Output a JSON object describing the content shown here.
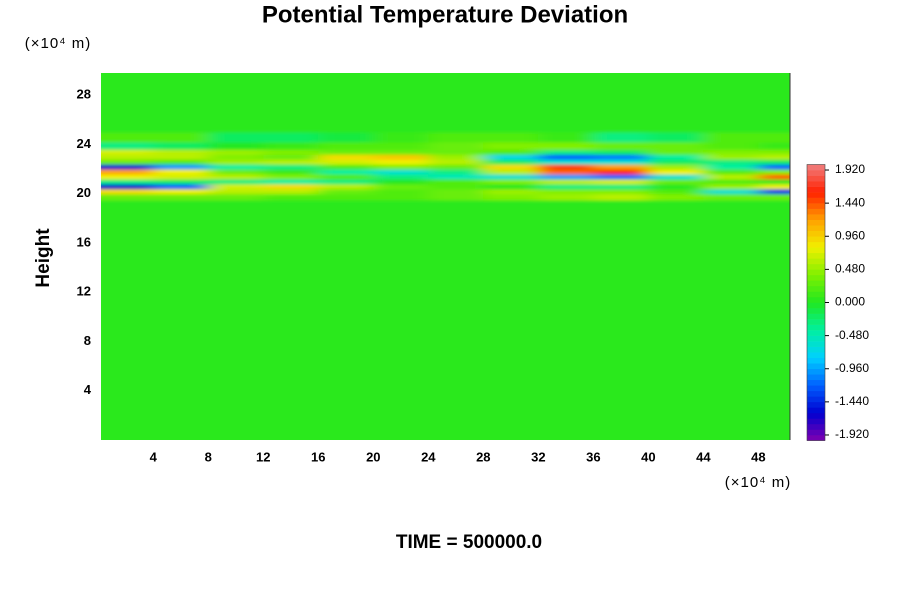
{
  "chart_data": {
    "type": "heatmap",
    "title": "Potential Temperature Deviation",
    "ylabel": "Height",
    "x_unit": "(×10⁴ m)",
    "y_unit": "(×10⁴ m)",
    "annotation": "TIME = 500000.0",
    "xlim": [
      0.2,
      50.3
    ],
    "ylim": [
      0,
      29.8
    ],
    "xticks": [
      4,
      8,
      12,
      16,
      20,
      24,
      28,
      32,
      36,
      40,
      44,
      48
    ],
    "yticks": [
      4,
      8,
      12,
      16,
      20,
      24,
      28
    ],
    "x_edges": [
      0.2,
      4,
      8,
      12,
      16,
      20,
      24,
      28,
      32,
      36,
      40,
      44,
      48,
      50.3
    ],
    "y_edges": [
      0,
      19.5,
      20.0,
      20.4,
      20.8,
      21.2,
      21.6,
      22.0,
      22.4,
      22.8,
      23.2,
      23.6,
      24.2,
      25,
      29.8
    ],
    "z": [
      [
        0.05,
        0.05,
        0.05,
        0.05,
        0.05,
        0.05,
        0.05,
        0.05,
        0.05,
        0.05,
        0.05,
        0.05,
        0.05
      ],
      [
        0.3,
        0.3,
        0.3,
        0.2,
        0.2,
        0.2,
        0.3,
        0.4,
        0.5,
        0.6,
        0.4,
        0.3,
        0.3
      ],
      [
        0.9,
        0.8,
        0.6,
        0.6,
        0.3,
        0.2,
        0.3,
        0.5,
        0.4,
        0.4,
        0.2,
        -0.6,
        -1.4
      ],
      [
        -1.6,
        -1.2,
        0.7,
        0.9,
        0.6,
        0.3,
        0.2,
        0.0,
        -0.3,
        -0.3,
        0.0,
        0.5,
        0.8
      ],
      [
        -0.3,
        -0.2,
        -0.3,
        -0.4,
        -0.3,
        0.0,
        0.2,
        0.4,
        0.6,
        0.7,
        0.3,
        0.2,
        0.0
      ],
      [
        0.8,
        0.7,
        0.6,
        0.4,
        0.2,
        -0.3,
        -0.5,
        -0.6,
        -1.0,
        -1.2,
        -0.6,
        0.6,
        1.4
      ],
      [
        1.2,
        0.8,
        0.3,
        0.1,
        -0.4,
        -0.6,
        -0.3,
        0.6,
        1.4,
        1.6,
        0.8,
        0.2,
        0.4
      ],
      [
        -1.6,
        -1.0,
        -0.4,
        -0.3,
        0.2,
        0.4,
        0.3,
        0.9,
        1.5,
        1.2,
        0.5,
        -0.4,
        -1.2
      ],
      [
        0.3,
        0.2,
        0.5,
        0.6,
        0.7,
        0.8,
        0.6,
        -0.2,
        -0.6,
        -0.6,
        -0.2,
        -0.3,
        -0.2
      ],
      [
        0.6,
        0.6,
        0.4,
        0.3,
        0.9,
        1.0,
        0.5,
        -0.7,
        -1.2,
        -1.1,
        -0.4,
        0.5,
        0.6
      ],
      [
        0.7,
        0.6,
        0.5,
        0.4,
        0.3,
        0.3,
        0.3,
        0.2,
        -0.3,
        -0.2,
        0.3,
        0.4,
        0.4
      ],
      [
        -0.3,
        -0.2,
        0.0,
        0.1,
        0.2,
        0.2,
        0.3,
        0.4,
        0.4,
        0.3,
        0.3,
        0.2,
        0.1
      ],
      [
        0.2,
        0.2,
        -0.2,
        -0.2,
        -0.1,
        0.1,
        0.2,
        0.2,
        0.1,
        -0.3,
        -0.2,
        0.2,
        0.2
      ],
      [
        0.05,
        0.05,
        0.05,
        0.05,
        0.05,
        0.05,
        0.05,
        0.05,
        0.05,
        0.05,
        0.05,
        0.05,
        0.05
      ]
    ],
    "clim": [
      -2,
      2
    ],
    "colorscale": [
      "#8000b0",
      "#0000d0",
      "#0060ff",
      "#00d0ff",
      "#00f0a0",
      "#20e820",
      "#80f000",
      "#f0f000",
      "#ffa000",
      "#ff2000",
      "#f08080"
    ],
    "cticks": [
      {
        "value": 1.92,
        "label": "1.920"
      },
      {
        "value": 1.44,
        "label": "1.440"
      },
      {
        "value": 0.96,
        "label": "0.960"
      },
      {
        "value": 0.48,
        "label": "0.480"
      },
      {
        "value": 0,
        "label": "0.000"
      },
      {
        "value": -0.48,
        "label": "-0.480"
      },
      {
        "value": -0.96,
        "label": "-0.960"
      },
      {
        "value": -1.44,
        "label": "-1.440"
      },
      {
        "value": -1.92,
        "label": "-1.920"
      }
    ]
  }
}
